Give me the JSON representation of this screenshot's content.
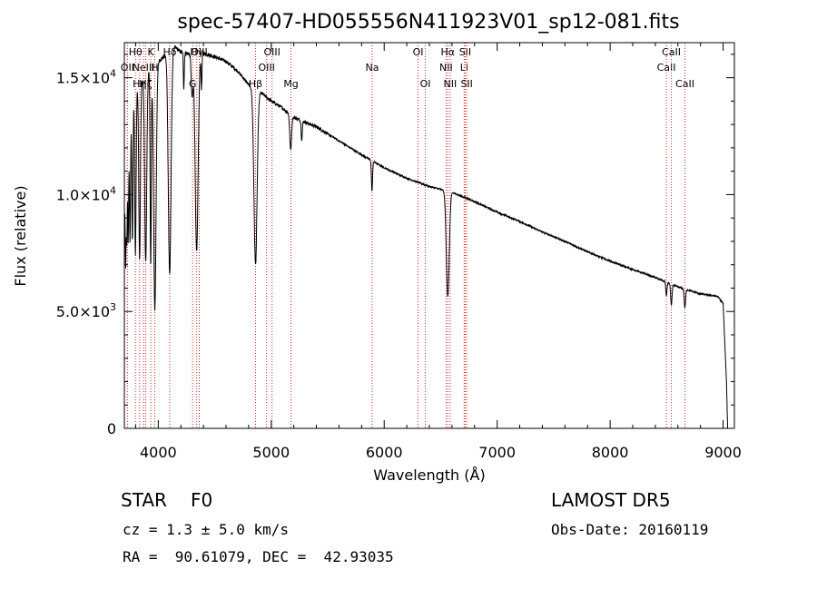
{
  "chart_data": {
    "type": "line",
    "title": "spec-57407-HD055556N411923V01_sp12-081.fits",
    "xlabel": "Wavelength (Å)",
    "ylabel": "Flux (relative)",
    "xlim": [
      3700,
      9100
    ],
    "ylim": [
      0,
      16500
    ],
    "x_ticks": [
      {
        "v": 4000,
        "label": "4000"
      },
      {
        "v": 5000,
        "label": "5000"
      },
      {
        "v": 6000,
        "label": "6000"
      },
      {
        "v": 7000,
        "label": "7000"
      },
      {
        "v": 8000,
        "label": "8000"
      },
      {
        "v": 9000,
        "label": "9000"
      }
    ],
    "y_ticks": [
      {
        "v": 0,
        "label": "0"
      },
      {
        "v": 5000,
        "mant": "5.0×10",
        "exp": "3"
      },
      {
        "v": 10000,
        "mant": "1.0×10",
        "exp": "4"
      },
      {
        "v": 15000,
        "mant": "1.5×10",
        "exp": "4"
      }
    ],
    "continuum": [
      [
        3700,
        9000
      ],
      [
        3720,
        12500
      ],
      [
        3760,
        13800
      ],
      [
        3800,
        14500
      ],
      [
        3850,
        14800
      ],
      [
        3900,
        15200
      ],
      [
        3950,
        15500
      ],
      [
        4000,
        15700
      ],
      [
        4050,
        15900
      ],
      [
        4100,
        16100
      ],
      [
        4150,
        16300
      ],
      [
        4200,
        16100
      ],
      [
        4300,
        16000
      ],
      [
        4400,
        16050
      ],
      [
        4500,
        15900
      ],
      [
        4600,
        15700
      ],
      [
        4700,
        15300
      ],
      [
        4800,
        14700
      ],
      [
        4900,
        14400
      ],
      [
        5000,
        14000
      ],
      [
        5100,
        13700
      ],
      [
        5200,
        13300
      ],
      [
        5400,
        12900
      ],
      [
        5600,
        12300
      ],
      [
        5800,
        11700
      ],
      [
        6000,
        11150
      ],
      [
        6200,
        10700
      ],
      [
        6400,
        10350
      ],
      [
        6600,
        10100
      ],
      [
        6800,
        9700
      ],
      [
        7000,
        9250
      ],
      [
        7200,
        8850
      ],
      [
        7400,
        8400
      ],
      [
        7600,
        8000
      ],
      [
        7800,
        7550
      ],
      [
        8000,
        7150
      ],
      [
        8200,
        6800
      ],
      [
        8400,
        6450
      ],
      [
        8500,
        6250
      ],
      [
        8600,
        6050
      ],
      [
        8800,
        5750
      ],
      [
        8950,
        5650
      ],
      [
        9000,
        5350
      ],
      [
        9030,
        2000
      ],
      [
        9040,
        0
      ]
    ],
    "absorption": [
      {
        "w": 3712,
        "d": 4000,
        "s": 4
      },
      {
        "w": 3722,
        "d": 4500,
        "s": 4
      },
      {
        "w": 3734,
        "d": 5000,
        "s": 4
      },
      {
        "w": 3750,
        "d": 5500,
        "s": 5
      },
      {
        "w": 3771,
        "d": 6000,
        "s": 5
      },
      {
        "w": 3798,
        "d": 7000,
        "s": 6
      },
      {
        "w": 3835,
        "d": 7500,
        "s": 7
      },
      {
        "w": 3889,
        "d": 8000,
        "s": 9
      },
      {
        "w": 3933,
        "d": 8500,
        "s": 5
      },
      {
        "w": 3970,
        "d": 10500,
        "s": 11
      },
      {
        "w": 4101,
        "d": 9500,
        "s": 12
      },
      {
        "w": 4226,
        "d": 1500,
        "s": 4
      },
      {
        "w": 4300,
        "d": 1800,
        "s": 8
      },
      {
        "w": 4340,
        "d": 8500,
        "s": 13
      },
      {
        "w": 4383,
        "d": 1500,
        "s": 4
      },
      {
        "w": 4861,
        "d": 7500,
        "s": 14
      },
      {
        "w": 5172,
        "d": 1500,
        "s": 8
      },
      {
        "w": 5270,
        "d": 800,
        "s": 5
      },
      {
        "w": 5892,
        "d": 1300,
        "s": 5
      },
      {
        "w": 6563,
        "d": 4500,
        "s": 13
      },
      {
        "w": 8498,
        "d": 600,
        "s": 5
      },
      {
        "w": 8542,
        "d": 900,
        "s": 6
      },
      {
        "w": 8662,
        "d": 800,
        "s": 6
      }
    ],
    "line_markers": [
      {
        "w": 3727,
        "label": "OII",
        "row": 1
      },
      {
        "w": 3798,
        "label": "Hθ",
        "row": 0
      },
      {
        "w": 3835,
        "label": "Hη",
        "row": 2
      },
      {
        "w": 3869,
        "label": "NeIII",
        "row": 1
      },
      {
        "w": 3889,
        "label": "Hζ",
        "row": 2
      },
      {
        "w": 3934,
        "label": "K",
        "row": 0
      },
      {
        "w": 3969,
        "label": "H",
        "row": 1
      },
      {
        "w": 4102,
        "label": "Hδ",
        "row": 0
      },
      {
        "w": 4304,
        "label": "G",
        "row": 2
      },
      {
        "w": 4341,
        "label": "Hγ",
        "row": 0
      },
      {
        "w": 4363,
        "label": "OIII",
        "row": 0
      },
      {
        "w": 4861,
        "label": "Hβ",
        "row": 2
      },
      {
        "w": 4959,
        "label": "OIII",
        "row": 1
      },
      {
        "w": 5007,
        "label": "OIII",
        "row": 0
      },
      {
        "w": 5175,
        "label": "Mg",
        "row": 2
      },
      {
        "w": 5894,
        "label": "Na",
        "row": 1
      },
      {
        "w": 6300,
        "label": "OI",
        "row": 0
      },
      {
        "w": 6364,
        "label": "OI",
        "row": 2
      },
      {
        "w": 6548,
        "label": "NII",
        "row": 1
      },
      {
        "w": 6563,
        "label": "Hα",
        "row": 0
      },
      {
        "w": 6584,
        "label": "NII",
        "row": 2
      },
      {
        "w": 6708,
        "label": "Li",
        "row": 1
      },
      {
        "w": 6717,
        "label": "SII",
        "row": 0
      },
      {
        "w": 6731,
        "label": "SII",
        "row": 2
      },
      {
        "w": 8498,
        "label": "CaII",
        "row": 1
      },
      {
        "w": 8542,
        "label": "CaII",
        "row": 0
      },
      {
        "w": 8662,
        "label": "CaII",
        "row": 2
      }
    ]
  },
  "info": {
    "class_label": "STAR",
    "subclass": "F0",
    "survey": "LAMOST DR5",
    "cz": "cz = 1.3 ± 5.0 km/s",
    "obs_date": "Obs-Date: 20160119",
    "coords": "RA =  90.61079, DEC =  42.93035"
  }
}
